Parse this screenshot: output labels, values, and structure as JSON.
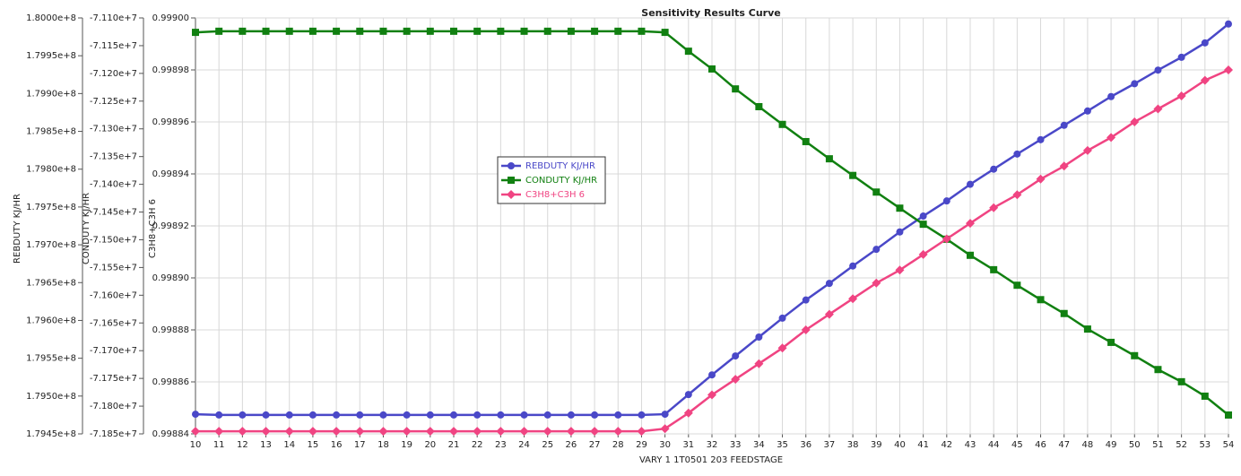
{
  "chart_data": {
    "type": "line",
    "title": "Sensitivity Results Curve",
    "xlabel": "VARY  1 1T0501 203 FEEDSTAGE",
    "ylabel": "REBDUTY KJ/HR",
    "y2label": "CONDUTY KJ/HR",
    "y3label": "C3H8+C3H 6",
    "grid": true,
    "x": [
      10,
      11,
      12,
      13,
      14,
      15,
      16,
      17,
      18,
      19,
      20,
      21,
      22,
      23,
      24,
      25,
      26,
      27,
      28,
      29,
      30,
      31,
      32,
      33,
      34,
      35,
      36,
      37,
      38,
      39,
      40,
      41,
      42,
      43,
      44,
      45,
      46,
      47,
      48,
      49,
      50,
      51,
      52,
      53,
      54
    ],
    "xlim": [
      10,
      54
    ],
    "xticks": [
      10,
      11,
      12,
      13,
      14,
      15,
      16,
      17,
      18,
      19,
      20,
      21,
      22,
      23,
      24,
      25,
      26,
      27,
      28,
      29,
      30,
      31,
      32,
      33,
      34,
      35,
      36,
      37,
      38,
      39,
      40,
      41,
      42,
      43,
      44,
      45,
      46,
      47,
      48,
      49,
      50,
      51,
      52,
      53,
      54
    ],
    "ylim": [
      179450000,
      180000000
    ],
    "yticks": [
      {
        "value": 179450000,
        "label": "1.7945e+8"
      },
      {
        "value": 179500000,
        "label": "1.7950e+8"
      },
      {
        "value": 179550000,
        "label": "1.7955e+8"
      },
      {
        "value": 179600000,
        "label": "1.7960e+8"
      },
      {
        "value": 179650000,
        "label": "1.7965e+8"
      },
      {
        "value": 179700000,
        "label": "1.7970e+8"
      },
      {
        "value": 179750000,
        "label": "1.7975e+8"
      },
      {
        "value": 179800000,
        "label": "1.7980e+8"
      },
      {
        "value": 179850000,
        "label": "1.7985e+8"
      },
      {
        "value": 179900000,
        "label": "1.7990e+8"
      },
      {
        "value": 179950000,
        "label": "1.7995e+8"
      },
      {
        "value": 180000000,
        "label": "1.8000e+8"
      }
    ],
    "y2lim": [
      -71850000,
      -71100000
    ],
    "y2ticks": [
      {
        "value": -71850000,
        "label": "-7.185e+7"
      },
      {
        "value": -71800000,
        "label": "-7.180e+7"
      },
      {
        "value": -71750000,
        "label": "-7.175e+7"
      },
      {
        "value": -71700000,
        "label": "-7.170e+7"
      },
      {
        "value": -71650000,
        "label": "-7.165e+7"
      },
      {
        "value": -71600000,
        "label": "-7.160e+7"
      },
      {
        "value": -71550000,
        "label": "-7.155e+7"
      },
      {
        "value": -71500000,
        "label": "-7.150e+7"
      },
      {
        "value": -71450000,
        "label": "-7.145e+7"
      },
      {
        "value": -71400000,
        "label": "-7.140e+7"
      },
      {
        "value": -71350000,
        "label": "-7.135e+7"
      },
      {
        "value": -71300000,
        "label": "-7.130e+7"
      },
      {
        "value": -71250000,
        "label": "-7.125e+7"
      },
      {
        "value": -71200000,
        "label": "-7.120e+7"
      },
      {
        "value": -71150000,
        "label": "-7.115e+7"
      },
      {
        "value": -71100000,
        "label": "-7.110e+7"
      }
    ],
    "y3lim": [
      0.99884,
      0.999
    ],
    "y3ticks": [
      0.99884,
      0.99886,
      0.99888,
      {
        "value": 0.9989,
        "label": "0.99890"
      },
      0.99892,
      0.99894,
      0.99896,
      0.99898,
      {
        "value": 0.999,
        "label": "0.99900"
      }
    ],
    "series": [
      {
        "name": "REBDUTY KJ/HR",
        "color": "#4a48c8",
        "marker": "circle",
        "axis": "y",
        "values": [
          179476000,
          179475000,
          179475000,
          179475000,
          179475000,
          179475000,
          179475000,
          179475000,
          179475000,
          179475000,
          179475000,
          179475000,
          179475000,
          179475000,
          179475000,
          179475000,
          179475000,
          179475000,
          179475000,
          179475000,
          179476000,
          179502000,
          179528000,
          179553000,
          179578000,
          179603000,
          179627000,
          179649000,
          179672000,
          179694000,
          179717000,
          179738000,
          179758000,
          179780000,
          179800000,
          179820000,
          179839000,
          179858000,
          179877000,
          179896000,
          179913000,
          179931000,
          179948000,
          179967000,
          179992000
        ]
      },
      {
        "name": "CONDUTY KJ/HR",
        "color": "#118011",
        "marker": "square",
        "axis": "y2",
        "values": [
          -71126000,
          -71124000,
          -71124000,
          -71124000,
          -71124000,
          -71124000,
          -71124000,
          -71124000,
          -71124000,
          -71124000,
          -71124000,
          -71124000,
          -71124000,
          -71124000,
          -71124000,
          -71124000,
          -71124000,
          -71124000,
          -71124000,
          -71124000,
          -71126000,
          -71160000,
          -71192000,
          -71228000,
          -71260000,
          -71292000,
          -71323000,
          -71354000,
          -71384000,
          -71414000,
          -71443000,
          -71472000,
          -71499000,
          -71528000,
          -71554000,
          -71582000,
          -71608000,
          -71633000,
          -71661000,
          -71685000,
          -71709000,
          -71734000,
          -71756000,
          -71782000,
          -71816000
        ]
      },
      {
        "name": "C3H8+C3H 6",
        "color": "#f04482",
        "marker": "diamond",
        "axis": "y3",
        "values": [
          0.998841,
          0.998841,
          0.998841,
          0.998841,
          0.998841,
          0.998841,
          0.998841,
          0.998841,
          0.998841,
          0.998841,
          0.998841,
          0.998841,
          0.998841,
          0.998841,
          0.998841,
          0.998841,
          0.998841,
          0.998841,
          0.998841,
          0.998841,
          0.998842,
          0.998848,
          0.998855,
          0.998861,
          0.998867,
          0.998873,
          0.99888,
          0.998886,
          0.998892,
          0.998898,
          0.998903,
          0.998909,
          0.998915,
          0.998921,
          0.998927,
          0.998932,
          0.998938,
          0.998943,
          0.998949,
          0.998954,
          0.99896,
          0.998965,
          0.99897,
          0.998976,
          0.99898
        ]
      }
    ]
  }
}
